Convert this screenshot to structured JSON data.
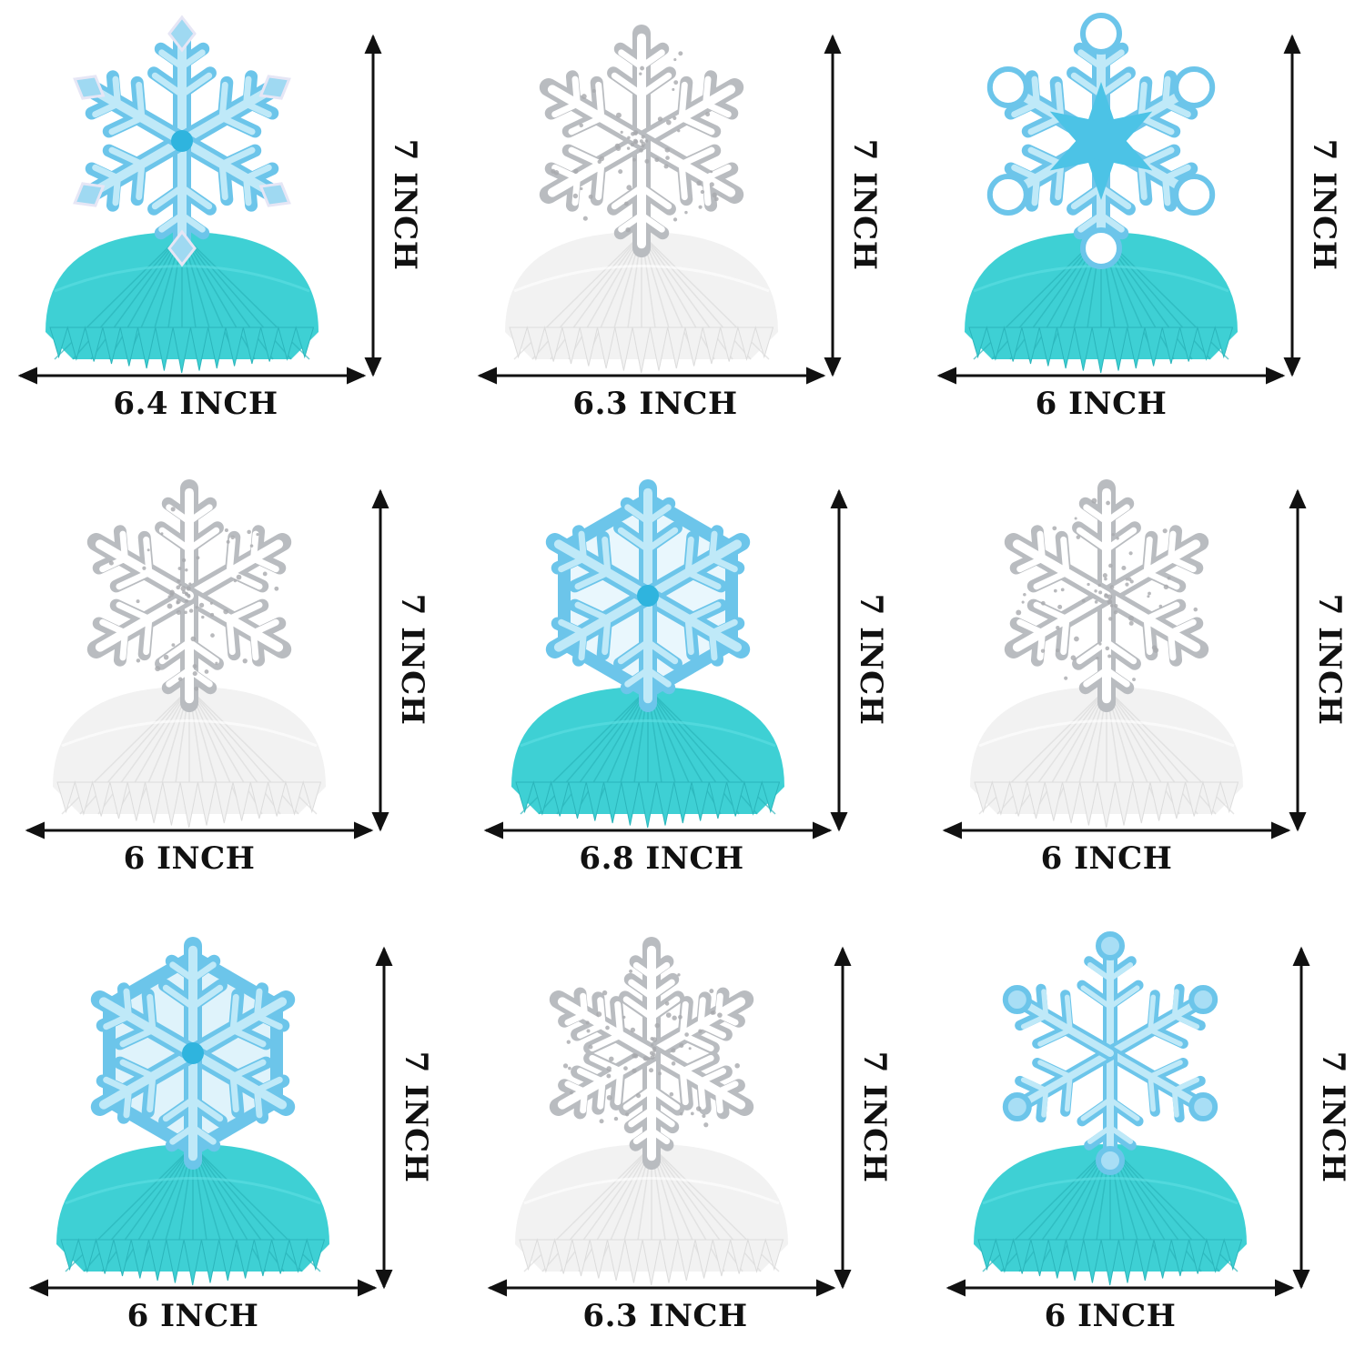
{
  "products": [
    {
      "width_label": "6.4 INCH",
      "height_label": "7 INCH",
      "flake_style": "crystal",
      "base_color": "#3ed0d4"
    },
    {
      "width_label": "6.3 INCH",
      "height_label": "7 INCH",
      "flake_style": "cluster-silver",
      "base_color": "#f2f2f2"
    },
    {
      "width_label": "6 INCH",
      "height_label": "7 INCH",
      "flake_style": "hearts",
      "base_color": "#3ed0d4"
    },
    {
      "width_label": "6 INCH",
      "height_label": "7 INCH",
      "flake_style": "glitter-silver",
      "base_color": "#f2f2f2"
    },
    {
      "width_label": "6.8 INCH",
      "height_label": "7 INCH",
      "flake_style": "ring",
      "base_color": "#3ed0d4"
    },
    {
      "width_label": "6 INCH",
      "height_label": "7 INCH",
      "flake_style": "lace-silver",
      "base_color": "#f2f2f2"
    },
    {
      "width_label": "6 INCH",
      "height_label": "7 INCH",
      "flake_style": "star-hexagon",
      "base_color": "#3ed0d4"
    },
    {
      "width_label": "6.3 INCH",
      "height_label": "7 INCH",
      "flake_style": "spiky-silver",
      "base_color": "#f2f2f2"
    },
    {
      "width_label": "6 INCH",
      "height_label": "7 INCH",
      "flake_style": "dots",
      "base_color": "#3ed0d4"
    }
  ],
  "colors": {
    "ice_blue": "#7fd0ee",
    "light_blue": "#aee4f6",
    "silver": "#c9c9c9",
    "teal": "#3ed0d4",
    "white": "#ffffff",
    "ink": "#111111"
  }
}
